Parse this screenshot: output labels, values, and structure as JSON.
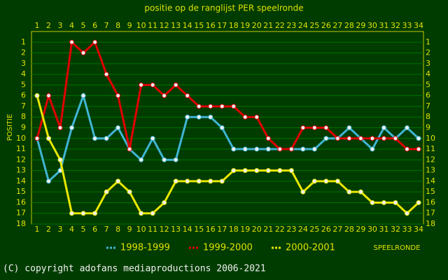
{
  "chart_data": {
    "type": "line",
    "title": "positie op de ranglijst PER speelronde",
    "y_label": "POSITIE",
    "x_label": "SPEELRONDE",
    "categories": [
      "1",
      "2",
      "3",
      "4",
      "5",
      "6",
      "7",
      "8",
      "9",
      "10",
      "11",
      "12",
      "13",
      "14",
      "15",
      "16",
      "17",
      "18",
      "19",
      "20",
      "21",
      "22",
      "23",
      "24",
      "25",
      "26",
      "27",
      "28",
      "29",
      "30",
      "31",
      "32",
      "33",
      "34"
    ],
    "series": [
      {
        "name": "1998-1999",
        "color": "#40b4d4",
        "values": [
          10,
          14,
          13,
          9,
          6,
          10,
          10,
          9,
          11,
          12,
          10,
          12,
          12,
          8,
          8,
          8,
          9,
          11,
          11,
          11,
          11,
          11,
          11,
          11,
          11,
          10,
          10,
          9,
          10,
          11,
          9,
          10,
          9,
          10
        ]
      },
      {
        "name": "1999-2000",
        "color": "#e00000",
        "values": [
          10,
          6,
          9,
          1,
          2,
          1,
          4,
          6,
          11,
          5,
          5,
          6,
          5,
          6,
          7,
          7,
          7,
          7,
          8,
          8,
          10,
          11,
          11,
          9,
          9,
          9,
          10,
          10,
          10,
          10,
          10,
          10,
          11,
          11
        ]
      },
      {
        "name": "2000-2001",
        "color": "#e8e800",
        "values": [
          6,
          10,
          12,
          17,
          17,
          17,
          15,
          14,
          15,
          17,
          17,
          16,
          14,
          14,
          14,
          14,
          14,
          13,
          13,
          13,
          13,
          13,
          13,
          15,
          14,
          14,
          14,
          15,
          15,
          16,
          16,
          16,
          17,
          16
        ]
      }
    ],
    "ylim": [
      0,
      18
    ],
    "inverted": true,
    "yticks": [
      1,
      2,
      3,
      4,
      5,
      6,
      7,
      8,
      9,
      10,
      11,
      12,
      13,
      14,
      15,
      16,
      17,
      18
    ],
    "grid": true
  },
  "footer": "(C) copyright adofans mediaproductions 2006-2021"
}
